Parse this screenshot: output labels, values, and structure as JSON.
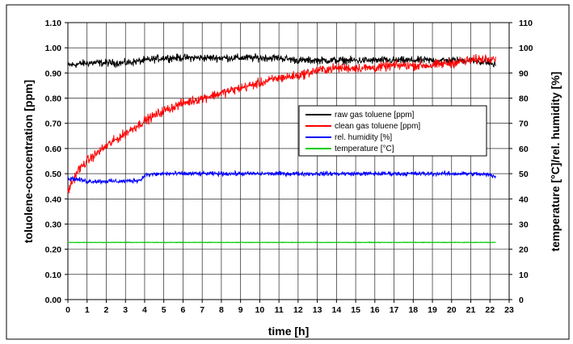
{
  "chart_data": {
    "type": "line",
    "title": "",
    "xlabel": "time [h]",
    "ylabel": "toluolene-concentration [ppm]",
    "y2label": "temperature [°C]/rel. humidity [%]",
    "xlim": [
      0,
      23
    ],
    "ylim": [
      0,
      1.1
    ],
    "y2lim": [
      0,
      110
    ],
    "x_ticks": [
      0,
      1,
      2,
      3,
      4,
      5,
      6,
      7,
      8,
      9,
      10,
      11,
      12,
      13,
      14,
      15,
      16,
      17,
      18,
      19,
      20,
      21,
      22,
      23
    ],
    "y_ticks": [
      "0.00",
      "0.10",
      "0.20",
      "0.30",
      "0.40",
      "0.50",
      "0.60",
      "0.70",
      "0.80",
      "0.90",
      "1.00",
      "1.10"
    ],
    "y2_ticks": [
      "0",
      "10",
      "20",
      "30",
      "40",
      "50",
      "60",
      "70",
      "80",
      "90",
      "100",
      "110"
    ],
    "grid": true,
    "legend_position": "right-center",
    "series": [
      {
        "name": "raw gas toluene [ppm]",
        "axis": "left",
        "color": "#000000",
        "x": [
          0,
          1,
          2,
          3,
          4,
          5,
          6,
          7,
          8,
          9,
          10,
          11,
          12,
          13,
          14,
          15,
          16,
          17,
          18,
          19,
          20,
          21,
          22,
          22.3
        ],
        "y": [
          0.93,
          0.94,
          0.94,
          0.94,
          0.95,
          0.96,
          0.96,
          0.96,
          0.96,
          0.96,
          0.96,
          0.96,
          0.95,
          0.95,
          0.95,
          0.95,
          0.95,
          0.95,
          0.95,
          0.95,
          0.95,
          0.95,
          0.94,
          0.93
        ]
      },
      {
        "name": "clean gas toluene [ppm]",
        "axis": "left",
        "color": "#ff0000",
        "x": [
          0,
          0.5,
          1,
          2,
          3,
          4,
          5,
          6,
          7,
          8,
          9,
          10,
          11,
          12,
          13,
          14,
          15,
          16,
          17,
          18,
          19,
          20,
          21,
          22,
          22.3
        ],
        "y": [
          0.43,
          0.51,
          0.55,
          0.61,
          0.66,
          0.71,
          0.75,
          0.78,
          0.8,
          0.82,
          0.84,
          0.86,
          0.88,
          0.89,
          0.91,
          0.92,
          0.92,
          0.92,
          0.93,
          0.93,
          0.93,
          0.94,
          0.95,
          0.96,
          0.96
        ]
      },
      {
        "name": "rel. humidity [%]",
        "axis": "right",
        "color": "#0000ff",
        "x": [
          0,
          0.3,
          1,
          2,
          3,
          3.8,
          4,
          5,
          6,
          7,
          8,
          9,
          10,
          11,
          12,
          13,
          14,
          15,
          16,
          17,
          18,
          19,
          20,
          21,
          22,
          22.3
        ],
        "y": [
          48,
          48,
          47,
          47,
          47,
          47.5,
          49.5,
          50,
          50,
          50,
          50,
          50,
          50,
          50,
          50,
          50,
          50,
          50,
          50,
          50,
          50,
          50,
          50,
          50,
          49.5,
          49
        ]
      },
      {
        "name": "temperature [°C]",
        "axis": "right",
        "color": "#00cc00",
        "x": [
          0,
          22.3
        ],
        "y": [
          22.7,
          22.7
        ]
      }
    ]
  }
}
